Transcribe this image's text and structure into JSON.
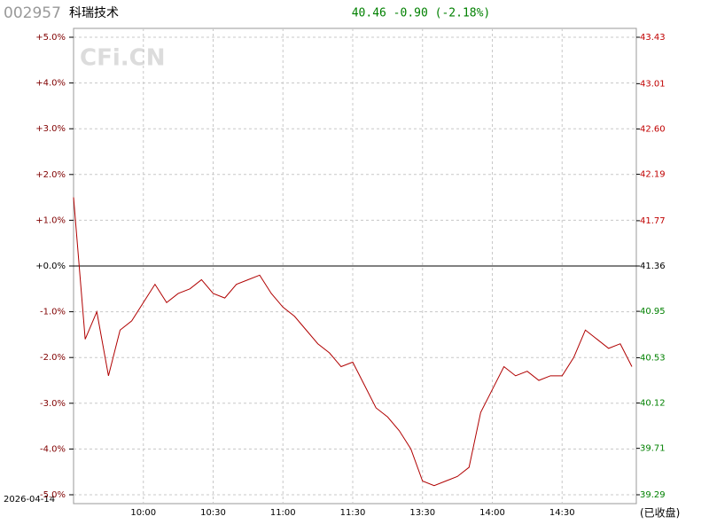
{
  "chart_data": {
    "type": "line",
    "code": "002957",
    "title": "科瑞技术",
    "quote": "40.46  -0.90  (-2.18%)",
    "watermark": "CFi.CN",
    "date": "2026-04-14",
    "status": "(已收盘)",
    "categories": [
      null,
      null,
      null,
      null,
      null,
      null,
      "10:00",
      null,
      null,
      null,
      null,
      null,
      "10:30",
      null,
      null,
      null,
      null,
      null,
      "11:00",
      null,
      null,
      null,
      null,
      null,
      "11:30",
      null,
      null,
      null,
      null,
      null,
      "13:30",
      null,
      null,
      null,
      null,
      null,
      "14:00",
      null,
      null,
      null,
      null,
      null,
      "14:30",
      null,
      null,
      null,
      null,
      null,
      null
    ],
    "series": [
      {
        "color": "#b00000",
        "values": [
          1.5,
          -1.6,
          -1.0,
          -2.4,
          -1.4,
          -1.2,
          -0.8,
          -0.4,
          -0.8,
          -0.6,
          -0.5,
          -0.3,
          -0.6,
          -0.7,
          -0.4,
          -0.3,
          -0.2,
          -0.6,
          -0.9,
          -1.1,
          -1.4,
          -1.7,
          -1.9,
          -2.2,
          -2.1,
          -2.6,
          -3.1,
          -3.3,
          -3.6,
          -4.0,
          -4.7,
          -4.8,
          -4.7,
          -4.6,
          -4.4,
          -3.2,
          -2.7,
          -2.2,
          -2.4,
          -2.3,
          -2.5,
          -2.4,
          -2.4,
          -2.0,
          -1.4,
          -1.6,
          -1.8,
          -1.7,
          -2.2
        ]
      }
    ],
    "ylim": [
      -5,
      5
    ],
    "yticks": [
      {
        "value": 5,
        "label": "+5.0%"
      },
      {
        "value": 4,
        "label": "+4.0%"
      },
      {
        "value": 3,
        "label": "+3.0%"
      },
      {
        "value": 2,
        "label": "+2.0%"
      },
      {
        "value": 1,
        "label": "+1.0%"
      },
      {
        "value": 0,
        "label": "+0.0%"
      },
      {
        "value": -1,
        "label": "-1.0%"
      },
      {
        "value": -2,
        "label": "-2.0%"
      },
      {
        "value": -3,
        "label": "-3.0%"
      },
      {
        "value": -4,
        "label": "-4.0%"
      },
      {
        "value": -5,
        "label": "-5.0%"
      }
    ],
    "y2lim": [
      39.29,
      43.43
    ],
    "y2ticks": [
      43.43,
      43.01,
      {
        "value": 42.6,
        "label": "42.60"
      },
      42.19,
      41.77,
      41.36,
      40.95,
      40.53,
      40.12,
      39.71,
      39.29
    ],
    "grid": true
  }
}
